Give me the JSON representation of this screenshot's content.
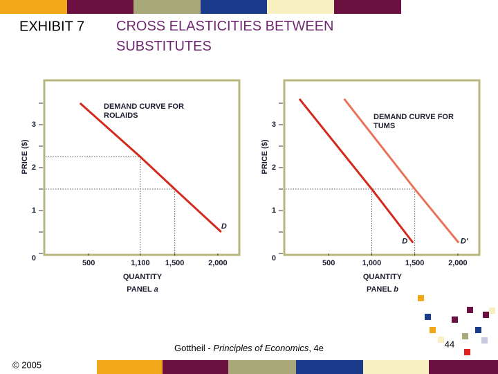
{
  "header": {
    "exhibit": "EXHIBIT 7",
    "title": "CROSS ELASTICITIES BETWEEN SUBSTITUTES"
  },
  "chart_data": [
    {
      "type": "line",
      "x_label": "QUANTITY",
      "y_label": "PRICE ($)",
      "panel": {
        "label": "PANEL",
        "letter": "a"
      },
      "annotation": "DEMAND CURVE FOR ROLAIDS",
      "xlim": [
        0,
        2250
      ],
      "ylim": [
        0,
        4
      ],
      "xticks": [
        500,
        {
          "value": 1100,
          "label": "1,100"
        },
        {
          "value": 1500,
          "label": "1,500"
        },
        {
          "value": 2000,
          "label": "2,000"
        }
      ],
      "yticks": [
        0,
        1,
        2,
        3
      ],
      "guides": [
        {
          "x": 1100,
          "y": 2.25
        },
        {
          "x": 1500,
          "y": 1.5
        }
      ],
      "series": [
        {
          "name": "D",
          "color": "#d42a1e",
          "x": [
            400,
            1100,
            1500,
            2040
          ],
          "values": [
            3.5,
            2.25,
            1.5,
            0.5
          ]
        }
      ]
    },
    {
      "type": "line",
      "x_label": "QUANTITY",
      "y_label": "PRICE ($)",
      "panel": {
        "label": "PANEL",
        "letter": "b"
      },
      "annotation": "DEMAND CURVE FOR TUMS",
      "xlim": [
        0,
        2250
      ],
      "ylim": [
        0,
        4
      ],
      "xticks": [
        500,
        {
          "value": 1000,
          "label": "1,000"
        },
        {
          "value": 1500,
          "label": "1,500"
        },
        {
          "value": 2000,
          "label": "2,000"
        }
      ],
      "yticks": [
        0,
        1,
        2,
        3
      ],
      "guides": [
        {
          "x": 1000,
          "y": 1.5
        },
        {
          "x": 1500,
          "y": 1.5
        }
      ],
      "series": [
        {
          "name": "D",
          "color": "#d42a1e",
          "x": [
            160,
            1000,
            1480
          ],
          "values": [
            3.6,
            1.5,
            0.25
          ]
        },
        {
          "name": "D'",
          "color": "#e8735a",
          "x": [
            680,
            1500,
            2010
          ],
          "values": [
            3.6,
            1.5,
            0.25
          ]
        }
      ]
    }
  ],
  "footer": {
    "copyright": "© 2005",
    "citation": {
      "author": "Gottheil - ",
      "book": "Principles of Economics",
      "edition": ", 4e"
    },
    "page": "44"
  }
}
